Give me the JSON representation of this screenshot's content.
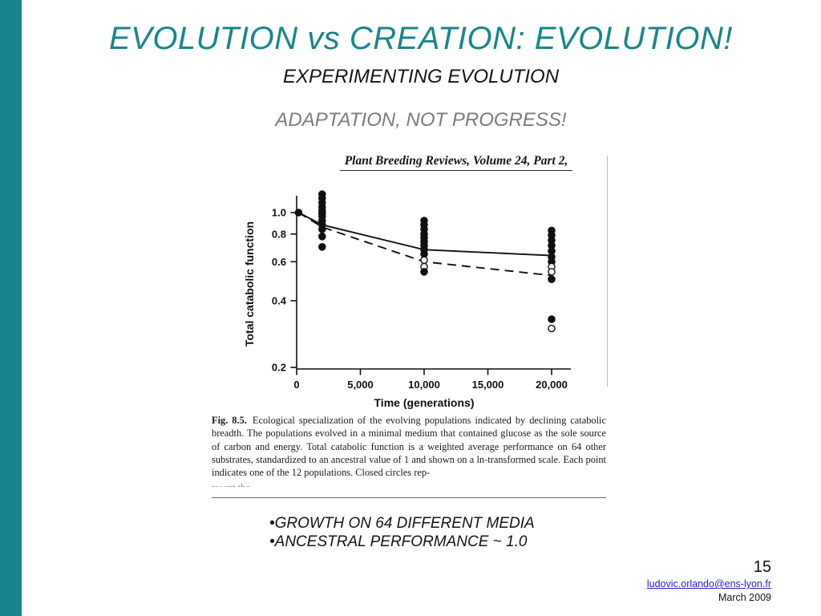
{
  "slide": {
    "accent_color": "#17868c",
    "title": "EVOLUTION vs CREATION: EVOLUTION!",
    "subtitle": "EXPERIMENTING EVOLUTION",
    "tagline": "ADAPTATION, NOT PROGRESS!",
    "bullet_char": "•",
    "bullets": [
      "GROWTH ON 64 DIFFERENT MEDIA",
      "ANCESTRAL PERFORMANCE ~ 1.0"
    ],
    "page_number": "15",
    "email": "ludovic.orlando@ens-lyon.fr",
    "date": "March 2009"
  },
  "figure": {
    "header": "Plant Breeding Reviews, Volume 24, Part 2,",
    "caption_label": "Fig. 8.5.",
    "caption_text": "Ecological specialization of the evolving populations indicated by declining catabolic breadth. The populations evolved in a minimal medium that contained glucose as the sole source of carbon and energy. Total catabolic function is a weighted average performance on 64 other substrates, standardized to an ancestral value of 1 and shown on a ln-transformed scale. Each point indicates one of the 12 populations. Closed circles rep-",
    "caption_cutoff": "resent the ..."
  },
  "chart_data": {
    "type": "scatter",
    "title": "Plant Breeding Reviews, Volume 24, Part 2,",
    "xlabel": "Time (generations)",
    "ylabel": "Total catabolic function",
    "y_scale": "ln",
    "xlim": [
      0,
      21500
    ],
    "ylim": [
      0.2,
      1.25
    ],
    "x_ticks": [
      {
        "value": 0,
        "label": "0"
      },
      {
        "value": 5000,
        "label": "5,000"
      },
      {
        "value": 10000,
        "label": "10,000"
      },
      {
        "value": 15000,
        "label": "15,000"
      },
      {
        "value": 20000,
        "label": "20,000"
      }
    ],
    "y_ticks": [
      {
        "value": 1.0,
        "label": "1.0"
      },
      {
        "value": 0.8,
        "label": "0.8"
      },
      {
        "value": 0.6,
        "label": "0.6"
      },
      {
        "value": 0.4,
        "label": "0.4"
      },
      {
        "value": 0.2,
        "label": "0.2"
      }
    ],
    "lines": [
      {
        "style": "solid",
        "xy": [
          [
            150,
            1.0
          ],
          [
            2000,
            0.88
          ],
          [
            10000,
            0.68
          ],
          [
            20000,
            0.64
          ]
        ]
      },
      {
        "style": "dashed",
        "xy": [
          [
            150,
            1.0
          ],
          [
            2000,
            0.86
          ],
          [
            10000,
            0.6
          ],
          [
            20000,
            0.52
          ]
        ]
      }
    ],
    "points": [
      {
        "x": 150,
        "y": 1.0
      },
      {
        "x": 2000,
        "y": 1.21
      },
      {
        "x": 2000,
        "y": 1.16
      },
      {
        "x": 2000,
        "y": 1.11
      },
      {
        "x": 2000,
        "y": 1.06
      },
      {
        "x": 2000,
        "y": 1.02
      },
      {
        "x": 2000,
        "y": 0.99
      },
      {
        "x": 2000,
        "y": 0.96
      },
      {
        "x": 2000,
        "y": 0.92
      },
      {
        "x": 2000,
        "y": 0.88
      },
      {
        "x": 2000,
        "y": 0.84
      },
      {
        "x": 2000,
        "y": 0.78
      },
      {
        "x": 2000,
        "y": 0.7
      },
      {
        "x": 10000,
        "y": 0.92
      },
      {
        "x": 10000,
        "y": 0.88
      },
      {
        "x": 10000,
        "y": 0.84
      },
      {
        "x": 10000,
        "y": 0.8
      },
      {
        "x": 10000,
        "y": 0.77
      },
      {
        "x": 10000,
        "y": 0.74
      },
      {
        "x": 10000,
        "y": 0.71
      },
      {
        "x": 10000,
        "y": 0.68
      },
      {
        "x": 10000,
        "y": 0.65
      },
      {
        "x": 10000,
        "y": 0.61,
        "open": true
      },
      {
        "x": 10000,
        "y": 0.57,
        "open": true
      },
      {
        "x": 10000,
        "y": 0.54
      },
      {
        "x": 20000,
        "y": 0.83
      },
      {
        "x": 20000,
        "y": 0.79
      },
      {
        "x": 20000,
        "y": 0.75
      },
      {
        "x": 20000,
        "y": 0.71
      },
      {
        "x": 20000,
        "y": 0.67
      },
      {
        "x": 20000,
        "y": 0.63
      },
      {
        "x": 20000,
        "y": 0.6
      },
      {
        "x": 20000,
        "y": 0.57,
        "open": true
      },
      {
        "x": 20000,
        "y": 0.54,
        "open": true
      },
      {
        "x": 20000,
        "y": 0.5
      },
      {
        "x": 20000,
        "y": 0.33
      },
      {
        "x": 20000,
        "y": 0.3,
        "open": true
      }
    ]
  }
}
